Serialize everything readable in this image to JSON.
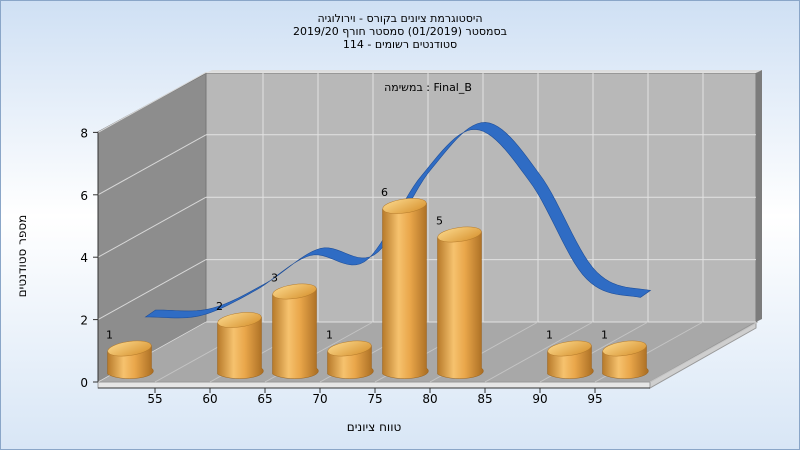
{
  "chart_data": {
    "type": "bar",
    "title_lines": [
      "היסטוגרמת ציונים בקורס - וירולוגיה",
      "בסמסטר  (01/2019)  סמסטר חורף 2019/20",
      "סטודנטים רשומים - 114"
    ],
    "subtitle": "במשימה : Final_B",
    "xlabel": "טווח ציונים",
    "ylabel": "מספר סטודנטים",
    "x_ticks": [
      "55",
      "60",
      "65",
      "70",
      "75",
      "80",
      "85",
      "90",
      "95"
    ],
    "y_ticks": [
      "0",
      "2",
      "4",
      "6",
      "8"
    ],
    "ylim": [
      0,
      8
    ],
    "categories": [
      "50-55",
      "55-60",
      "60-65",
      "65-70",
      "70-75",
      "75-80",
      "80-85",
      "85-90",
      "90-95",
      "95-100"
    ],
    "values": [
      1,
      0,
      2,
      3,
      1,
      6,
      5,
      0,
      1,
      1
    ],
    "curve": {
      "type": "normal-distribution",
      "color": "#2f6cc4",
      "points": [
        0.0,
        0.05,
        0.95,
        2.2,
        2.0,
        5.0,
        6.7,
        4.8,
        1.4,
        0.7
      ]
    },
    "bar_color": "#e7a84a",
    "grid": true
  }
}
